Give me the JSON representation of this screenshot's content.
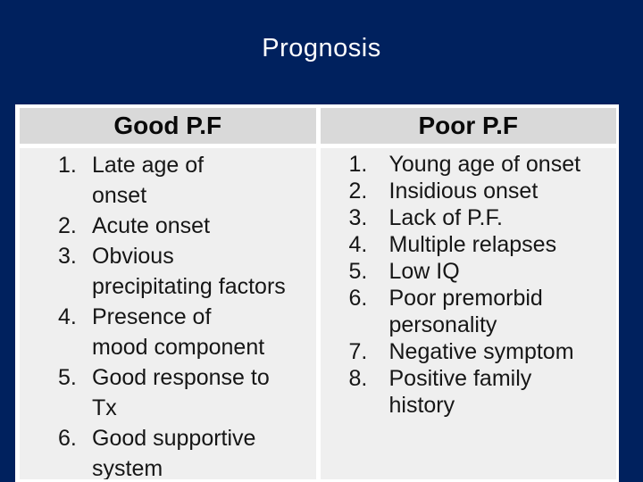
{
  "slide": {
    "title": "Prognosis",
    "colors": {
      "background": "#00215e",
      "table_border": "#ffffff",
      "header_bg": "#d9d9d9",
      "body_bg": "#efefef",
      "title_text": "#ffffff",
      "header_text": "#0a0a0a",
      "body_text": "#161616"
    },
    "table": {
      "columns": [
        {
          "header": "Good P.F",
          "items": [
            {
              "number": "1.",
              "lines": [
                "Late age of",
                "onset"
              ]
            },
            {
              "number": "2.",
              "lines": [
                "Acute onset"
              ]
            },
            {
              "number": "3.",
              "lines": [
                "Obvious",
                "precipitating factors"
              ]
            },
            {
              "number": "4.",
              "lines": [
                "Presence of",
                "mood component"
              ]
            },
            {
              "number": "5.",
              "lines": [
                "Good response to",
                "Tx"
              ]
            },
            {
              "number": "6.",
              "lines": [
                "Good supportive",
                "system"
              ]
            }
          ]
        },
        {
          "header": "Poor P.F",
          "items": [
            {
              "number": "1.",
              "lines": [
                "Young age of onset"
              ]
            },
            {
              "number": "2.",
              "lines": [
                "Insidious onset"
              ]
            },
            {
              "number": "3.",
              "lines": [
                "Lack of P.F."
              ]
            },
            {
              "number": "4.",
              "lines": [
                "Multiple relapses"
              ]
            },
            {
              "number": "5.",
              "lines": [
                "Low IQ"
              ]
            },
            {
              "number": "6.",
              "lines": [
                "Poor premorbid",
                "personality"
              ]
            },
            {
              "number": "7.",
              "lines": [
                "Negative symptom"
              ]
            },
            {
              "number": "8.",
              "lines": [
                "Positive family",
                "history"
              ]
            }
          ]
        }
      ]
    }
  }
}
